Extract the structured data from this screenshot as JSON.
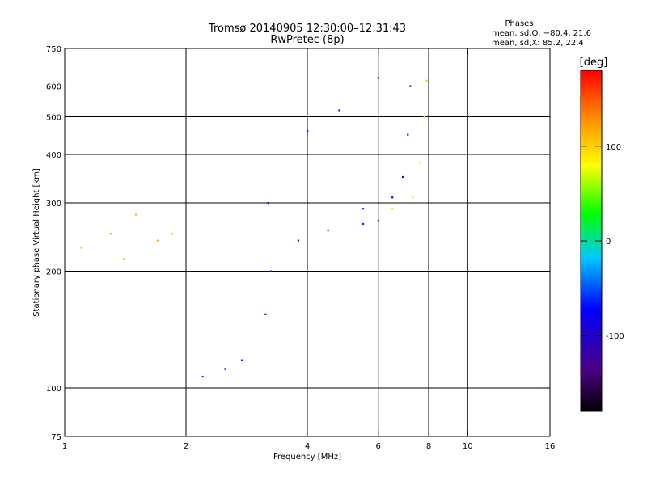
{
  "chart_data": {
    "type": "scatter",
    "title_line1": "Tromsø 20140905 12:30:00–12:31:43",
    "title_line2": "RwPretec (8p)",
    "stats": {
      "heading": "Phases",
      "line_o": "mean, sd,O: −80.4, 21.6",
      "line_x": "mean, sd,X:  85.2, 22.4"
    },
    "xlabel": "Frequency [MHz]",
    "ylabel": "Stationary phase Virtual Height [km]",
    "x_scale": "log",
    "y_scale": "log",
    "xlim": [
      1,
      16
    ],
    "ylim": [
      75,
      750
    ],
    "grid": true,
    "x_ticks": [
      {
        "value": 1,
        "label": "1"
      },
      {
        "value": 2,
        "label": "2"
      },
      {
        "value": 4,
        "label": "4"
      },
      {
        "value": 6,
        "label": "6"
      },
      {
        "value": 8,
        "label": "8"
      },
      {
        "value": 10,
        "label": "10"
      },
      {
        "value": 16,
        "label": "16"
      }
    ],
    "x_grid": [
      2,
      4,
      6,
      8,
      10
    ],
    "y_ticks": [
      {
        "value": 75,
        "label": "75"
      },
      {
        "value": 100,
        "label": "100"
      },
      {
        "value": 200,
        "label": "200"
      },
      {
        "value": 300,
        "label": "300"
      },
      {
        "value": 400,
        "label": "400"
      },
      {
        "value": 500,
        "label": "500"
      },
      {
        "value": 600,
        "label": "600"
      },
      {
        "value": 750,
        "label": "750"
      }
    ],
    "y_grid": [
      100,
      200,
      300,
      400,
      500,
      600
    ],
    "colorbar": {
      "label": "[deg]",
      "range": [
        -180,
        180
      ],
      "ticks": [
        {
          "value": 100,
          "label": "100"
        },
        {
          "value": 0,
          "label": "0"
        },
        {
          "value": -100,
          "label": "-100"
        }
      ]
    },
    "series": [
      {
        "points": [
          [
            1.3,
            250,
            120
          ],
          [
            1.5,
            280,
            110
          ],
          [
            1.1,
            230,
            125
          ],
          [
            1.7,
            240,
            115
          ],
          [
            1.4,
            215,
            118
          ]
        ],
        "color_range": [
          60,
          160
        ],
        "note_points_spread": {
          "x": [
            1.03,
            1.88
          ],
          "y": [
            190,
            315
          ]
        }
      },
      {
        "points": [
          [
            1.85,
            250,
            60
          ]
        ],
        "color_range": [
          30,
          100
        ],
        "note_points_spread": {
          "x": [
            1.78,
            1.92
          ],
          "y": [
            225,
            310
          ]
        }
      },
      {
        "points": [
          [
            2.2,
            107,
            -60
          ],
          [
            2.5,
            112,
            -75
          ],
          [
            2.75,
            118,
            -60
          ]
        ],
        "color_range": [
          -90,
          -40
        ]
      },
      {
        "points": [
          [
            3.2,
            300,
            -100
          ],
          [
            3.25,
            200,
            -105
          ],
          [
            3.15,
            155,
            -95
          ]
        ],
        "color_range": [
          -130,
          -80
        ]
      },
      {
        "points": [
          [
            3.8,
            240,
            -70
          ],
          [
            4.5,
            255,
            -65
          ],
          [
            5.5,
            265,
            -60
          ],
          [
            6.0,
            270,
            -70
          ]
        ],
        "color_range": [
          -90,
          -50
        ]
      },
      {
        "points": [
          [
            5.5,
            290,
            -60
          ],
          [
            6.5,
            310,
            -75
          ],
          [
            6.9,
            350,
            -90
          ],
          [
            7.1,
            450,
            -100
          ],
          [
            7.2,
            600,
            -115
          ]
        ],
        "color_range": [
          -130,
          -60
        ]
      },
      {
        "points": [
          [
            6.5,
            290,
            60
          ],
          [
            7.3,
            310,
            70
          ],
          [
            7.6,
            380,
            80
          ],
          [
            7.8,
            500,
            90
          ],
          [
            7.9,
            620,
            100
          ]
        ],
        "color_range": [
          40,
          120
        ]
      },
      {
        "points": [
          [
            4.0,
            460,
            -70
          ],
          [
            4.8,
            520,
            -75
          ],
          [
            6.0,
            630,
            -80
          ]
        ],
        "color_range": [
          -90,
          -60
        ]
      }
    ]
  }
}
